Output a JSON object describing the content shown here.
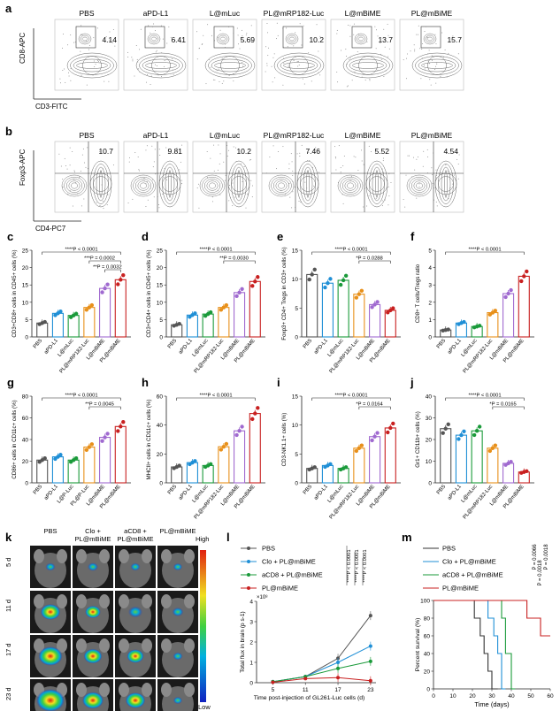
{
  "panel_letters": [
    "a",
    "b",
    "c",
    "d",
    "e",
    "f",
    "g",
    "h",
    "i",
    "j",
    "k",
    "l",
    "m"
  ],
  "groups": [
    "PBS",
    "aPD-L1",
    "L@mLuc",
    "PL@mRP182-Luc",
    "L@mBiME",
    "PL@mBiME"
  ],
  "group_colors": [
    "#555555",
    "#1f8fd6",
    "#1a9a3a",
    "#e8901a",
    "#a06ad0",
    "#c82020"
  ],
  "flow_a": {
    "ylabel": "CD8-APC",
    "xlabel": "CD3-FITC",
    "values": [
      "4.14",
      "6.41",
      "5.69",
      "10.2",
      "13.7",
      "15.7"
    ]
  },
  "flow_b": {
    "ylabel": "Foxp3-APC",
    "xlabel": "CD4-PC7",
    "values": [
      "10.7",
      "9.81",
      "10.2",
      "7.46",
      "5.52",
      "4.54"
    ]
  },
  "chart_data": [
    {
      "id": "c",
      "type": "bar",
      "ylabel": "CD3+CD8+ cells in CD45+ cells (%)",
      "categories": [
        "PBS",
        "aPD-L1",
        "L@mLuc",
        "PL@mRP182-Luc",
        "L@mBiME",
        "PL@mBiME"
      ],
      "values": [
        4,
        6.8,
        6.2,
        8.5,
        14,
        16.5
      ],
      "ylim": [
        0,
        25
      ],
      "yticks": [
        0,
        5,
        10,
        15,
        20,
        25
      ],
      "annotations": [
        "****P < 0.0001",
        "***P = 0.0002",
        "**P = 0.0032"
      ]
    },
    {
      "id": "d",
      "type": "bar",
      "ylabel": "CD3+CD4+ cells in CD45+ cells (%)",
      "categories": [
        "PBS",
        "aPD-L1",
        "L@mLuc",
        "PL@mRP182-Luc",
        "L@mBiME",
        "PL@mBiME"
      ],
      "values": [
        3.5,
        6.3,
        6.6,
        8.5,
        12.8,
        16
      ],
      "ylim": [
        0,
        25
      ],
      "yticks": [
        0,
        5,
        10,
        15,
        20,
        25
      ],
      "annotations": [
        "****P < 0.0001",
        "**P = 0.0030"
      ]
    },
    {
      "id": "e",
      "type": "bar",
      "ylabel": "Foxp3+ CD4+ Tregs in CD3+ cells (%)",
      "categories": [
        "PBS",
        "aPD-L1",
        "L@mLuc",
        "PL@mRP182-Luc",
        "L@mBiME",
        "PL@mBiME"
      ],
      "values": [
        10.8,
        9.3,
        9.8,
        7.4,
        5.6,
        4.6
      ],
      "ylim": [
        0,
        15
      ],
      "yticks": [
        0,
        5,
        10,
        15
      ],
      "annotations": [
        "****P < 0.0001",
        "*P = 0.0288"
      ]
    },
    {
      "id": "f",
      "type": "bar",
      "ylabel": "CD8+ T cells/Tregs ratio",
      "categories": [
        "PBS",
        "aPD-L1",
        "L@mLuc",
        "PL@mRP182-Luc",
        "L@mBiME",
        "PL@mBiME"
      ],
      "values": [
        0.4,
        0.8,
        0.6,
        1.4,
        2.5,
        3.5
      ],
      "ylim": [
        0,
        5
      ],
      "yticks": [
        0,
        1,
        2,
        3,
        4,
        5
      ],
      "annotations": [
        "****P < 0.0001"
      ]
    },
    {
      "id": "g",
      "type": "bar",
      "ylabel": "CD86+ cells in CD11c+ cells (%)",
      "categories": [
        "PBS",
        "aPD-L1",
        "L@P-Luc",
        "PL@P-Luc",
        "L@mBiME",
        "PL@mBiME"
      ],
      "values": [
        21,
        24,
        21,
        33,
        42,
        52
      ],
      "ylim": [
        0,
        80
      ],
      "yticks": [
        0,
        20,
        40,
        60,
        80
      ],
      "annotations": [
        "****P < 0.0001",
        "**P = 0.0045"
      ]
    },
    {
      "id": "h",
      "type": "bar",
      "ylabel": "MHCII+ cells in CD11c+ cells (%)",
      "categories": [
        "PBS",
        "aPD-L1",
        "L@mLuc",
        "PL@mRP182-Luc",
        "L@mBiME",
        "PL@mBiME"
      ],
      "values": [
        11,
        14,
        12,
        25,
        36,
        48
      ],
      "ylim": [
        0,
        60
      ],
      "yticks": [
        0,
        20,
        40,
        60
      ],
      "annotations": [
        "****P < 0.0001"
      ]
    },
    {
      "id": "i",
      "type": "bar",
      "ylabel": "CD3-NK1.1+ cells (%)",
      "categories": [
        "PBS",
        "aPD-L1",
        "L@mLuc",
        "PL@mRP182-Luc",
        "L@mBiME",
        "PL@mBiME"
      ],
      "values": [
        2.5,
        3,
        2.5,
        6,
        8,
        9.5
      ],
      "ylim": [
        0,
        15
      ],
      "yticks": [
        0,
        5,
        10,
        15
      ],
      "annotations": [
        "****P < 0.0001",
        "*P = 0.0164"
      ]
    },
    {
      "id": "j",
      "type": "bar",
      "ylabel": "Gr1+ CD11b+ cells (%)",
      "categories": [
        "PBS",
        "aPD-L1",
        "L@mLuc",
        "PL@mRP182-Luc",
        "L@mBiME",
        "PL@mBiME"
      ],
      "values": [
        25,
        22,
        24,
        16,
        9,
        5
      ],
      "ylim": [
        0,
        40
      ],
      "yticks": [
        0,
        10,
        20,
        30,
        40
      ],
      "annotations": [
        "****P < 0.0001",
        "*P = 0.0165"
      ]
    },
    {
      "id": "l",
      "type": "line",
      "ylabel": "Total flux in brain (p s-1)",
      "xlabel": "Time post-injection of GL261-Luc cells (d)",
      "yunit": "×10⁸",
      "x": [
        5,
        11,
        17,
        23
      ],
      "xticks": [
        5,
        11,
        17,
        23
      ],
      "ylim": [
        0,
        4
      ],
      "yticks": [
        0,
        1,
        2,
        3,
        4
      ],
      "series": [
        {
          "name": "PBS",
          "values": [
            0.05,
            0.3,
            1.2,
            3.3
          ]
        },
        {
          "name": "Clo + PL@mBiME",
          "values": [
            0.05,
            0.3,
            1.0,
            1.8
          ]
        },
        {
          "name": "aCD8 + PL@mBiME",
          "values": [
            0.05,
            0.3,
            0.7,
            1.05
          ]
        },
        {
          "name": "PL@mBiME",
          "values": [
            0.02,
            0.2,
            0.25,
            0.1
          ]
        }
      ],
      "annotations": [
        "****P < 0.0001",
        "****P < 0.0001",
        "****P < 0.0001"
      ]
    },
    {
      "id": "m",
      "type": "line",
      "ylabel": "Percent survival (%)",
      "xlabel": "Time (days)",
      "xlim": [
        0,
        60
      ],
      "xticks": [
        0,
        10,
        20,
        30,
        40,
        50,
        60
      ],
      "ylim": [
        0,
        100
      ],
      "yticks": [
        0,
        20,
        40,
        60,
        80,
        100
      ],
      "series": [
        {
          "name": "PBS",
          "steps": [
            [
              0,
              100
            ],
            [
              21,
              100
            ],
            [
              21,
              80
            ],
            [
              24,
              80
            ],
            [
              24,
              60
            ],
            [
              26,
              60
            ],
            [
              26,
              40
            ],
            [
              28,
              40
            ],
            [
              28,
              20
            ],
            [
              30,
              20
            ],
            [
              30,
              0
            ],
            [
              33,
              0
            ]
          ]
        },
        {
          "name": "Clo + PL@mBiME",
          "steps": [
            [
              0,
              100
            ],
            [
              28,
              100
            ],
            [
              28,
              80
            ],
            [
              31,
              80
            ],
            [
              31,
              60
            ],
            [
              33,
              60
            ],
            [
              33,
              40
            ],
            [
              35,
              40
            ],
            [
              35,
              0
            ],
            [
              37,
              0
            ]
          ]
        },
        {
          "name": "aCD8 + PL@mBiME",
          "steps": [
            [
              0,
              100
            ],
            [
              35,
              100
            ],
            [
              35,
              80
            ],
            [
              37,
              80
            ],
            [
              37,
              40
            ],
            [
              40,
              40
            ],
            [
              40,
              0
            ],
            [
              42,
              0
            ]
          ]
        },
        {
          "name": "PL@mBiME",
          "steps": [
            [
              0,
              100
            ],
            [
              48,
              100
            ],
            [
              48,
              80
            ],
            [
              55,
              80
            ],
            [
              55,
              60
            ],
            [
              60,
              60
            ]
          ]
        }
      ],
      "annotations": [
        "P = 0.0018",
        "P = 0.0066",
        "P = 0.0018"
      ]
    }
  ],
  "imaging": {
    "columns": [
      "PBS",
      "Clo + PL@mBiME",
      "aCD8 + PL@mBiME",
      "PL@mBiME"
    ],
    "rows": [
      "5 d",
      "11 d",
      "17 d",
      "23 d"
    ],
    "colorbar_high": "High",
    "colorbar_low": "Low"
  }
}
